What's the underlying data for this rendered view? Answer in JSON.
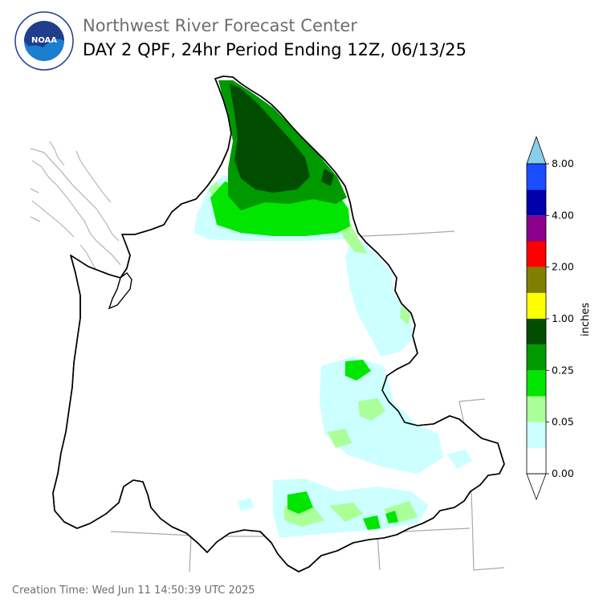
{
  "header": {
    "org_title": "Northwest River Forecast Center",
    "product_title": "DAY 2 QPF, 24hr Period Ending 12Z, 06/13/25"
  },
  "logo": {
    "text": "NOAA",
    "ring_text": "NATIONAL OCEANIC AND ATMOSPHERIC ADMINISTRATION",
    "ring_text_bottom": "U.S. DEPARTMENT OF COMMERCE",
    "icon": "noaa-logo"
  },
  "legend": {
    "unit_label": "inches",
    "tick_labels": [
      "0.00",
      "0.05",
      "0.25",
      "1.00",
      "2.00",
      "4.00",
      "8.00"
    ],
    "bins": [
      {
        "color": "#ffffff"
      },
      {
        "color": "#ccffff"
      },
      {
        "color": "#aaff99"
      },
      {
        "color": "#00e600"
      },
      {
        "color": "#009900"
      },
      {
        "color": "#004d00"
      },
      {
        "color": "#ffff00"
      },
      {
        "color": "#808000"
      },
      {
        "color": "#ff0000"
      },
      {
        "color": "#8b008b"
      },
      {
        "color": "#0000aa"
      },
      {
        "color": "#1a4dff"
      }
    ],
    "under_color": "#ffffff",
    "over_color": "#87ceeb"
  },
  "footer": {
    "creation_time": "Creation Time: Wed Jun 11 14:50:39 UTC 2025"
  }
}
